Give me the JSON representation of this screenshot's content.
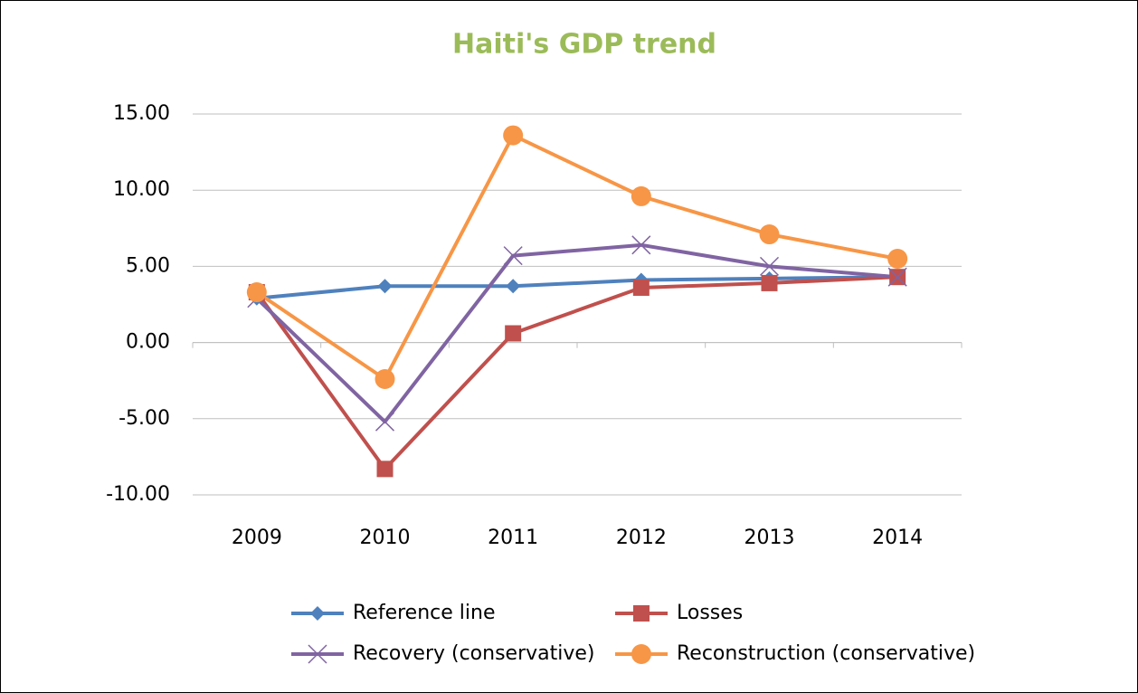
{
  "chart_data": {
    "type": "line",
    "title": "Haiti's GDP trend",
    "categories": [
      "2009",
      "2010",
      "2011",
      "2012",
      "2013",
      "2014"
    ],
    "series": [
      {
        "name": "Reference line",
        "color": "#4f81bd",
        "marker": "diamond",
        "values": [
          2.9,
          3.7,
          3.7,
          4.1,
          4.2,
          4.3
        ]
      },
      {
        "name": "Losses",
        "color": "#c0504d",
        "marker": "square",
        "values": [
          3.3,
          -8.3,
          0.6,
          3.6,
          3.9,
          4.3
        ]
      },
      {
        "name": "Recovery (conservative)",
        "color": "#8064a2",
        "marker": "x",
        "values": [
          2.9,
          -5.2,
          5.7,
          6.4,
          5.0,
          4.3
        ]
      },
      {
        "name": "Reconstruction (conservative)",
        "color": "#f79646",
        "marker": "circle",
        "values": [
          3.3,
          -2.4,
          13.6,
          9.6,
          7.1,
          5.5
        ]
      }
    ],
    "ylim": [
      -10,
      15
    ],
    "yticks": [
      {
        "value": -10,
        "label": "-10.00"
      },
      {
        "value": -5,
        "label": "-5.00"
      },
      {
        "value": 0,
        "label": "0.00"
      },
      {
        "value": 5,
        "label": "5.00"
      },
      {
        "value": 10,
        "label": "10.00"
      },
      {
        "value": 15,
        "label": "15.00"
      }
    ],
    "grid": true,
    "legend": "bottom"
  }
}
